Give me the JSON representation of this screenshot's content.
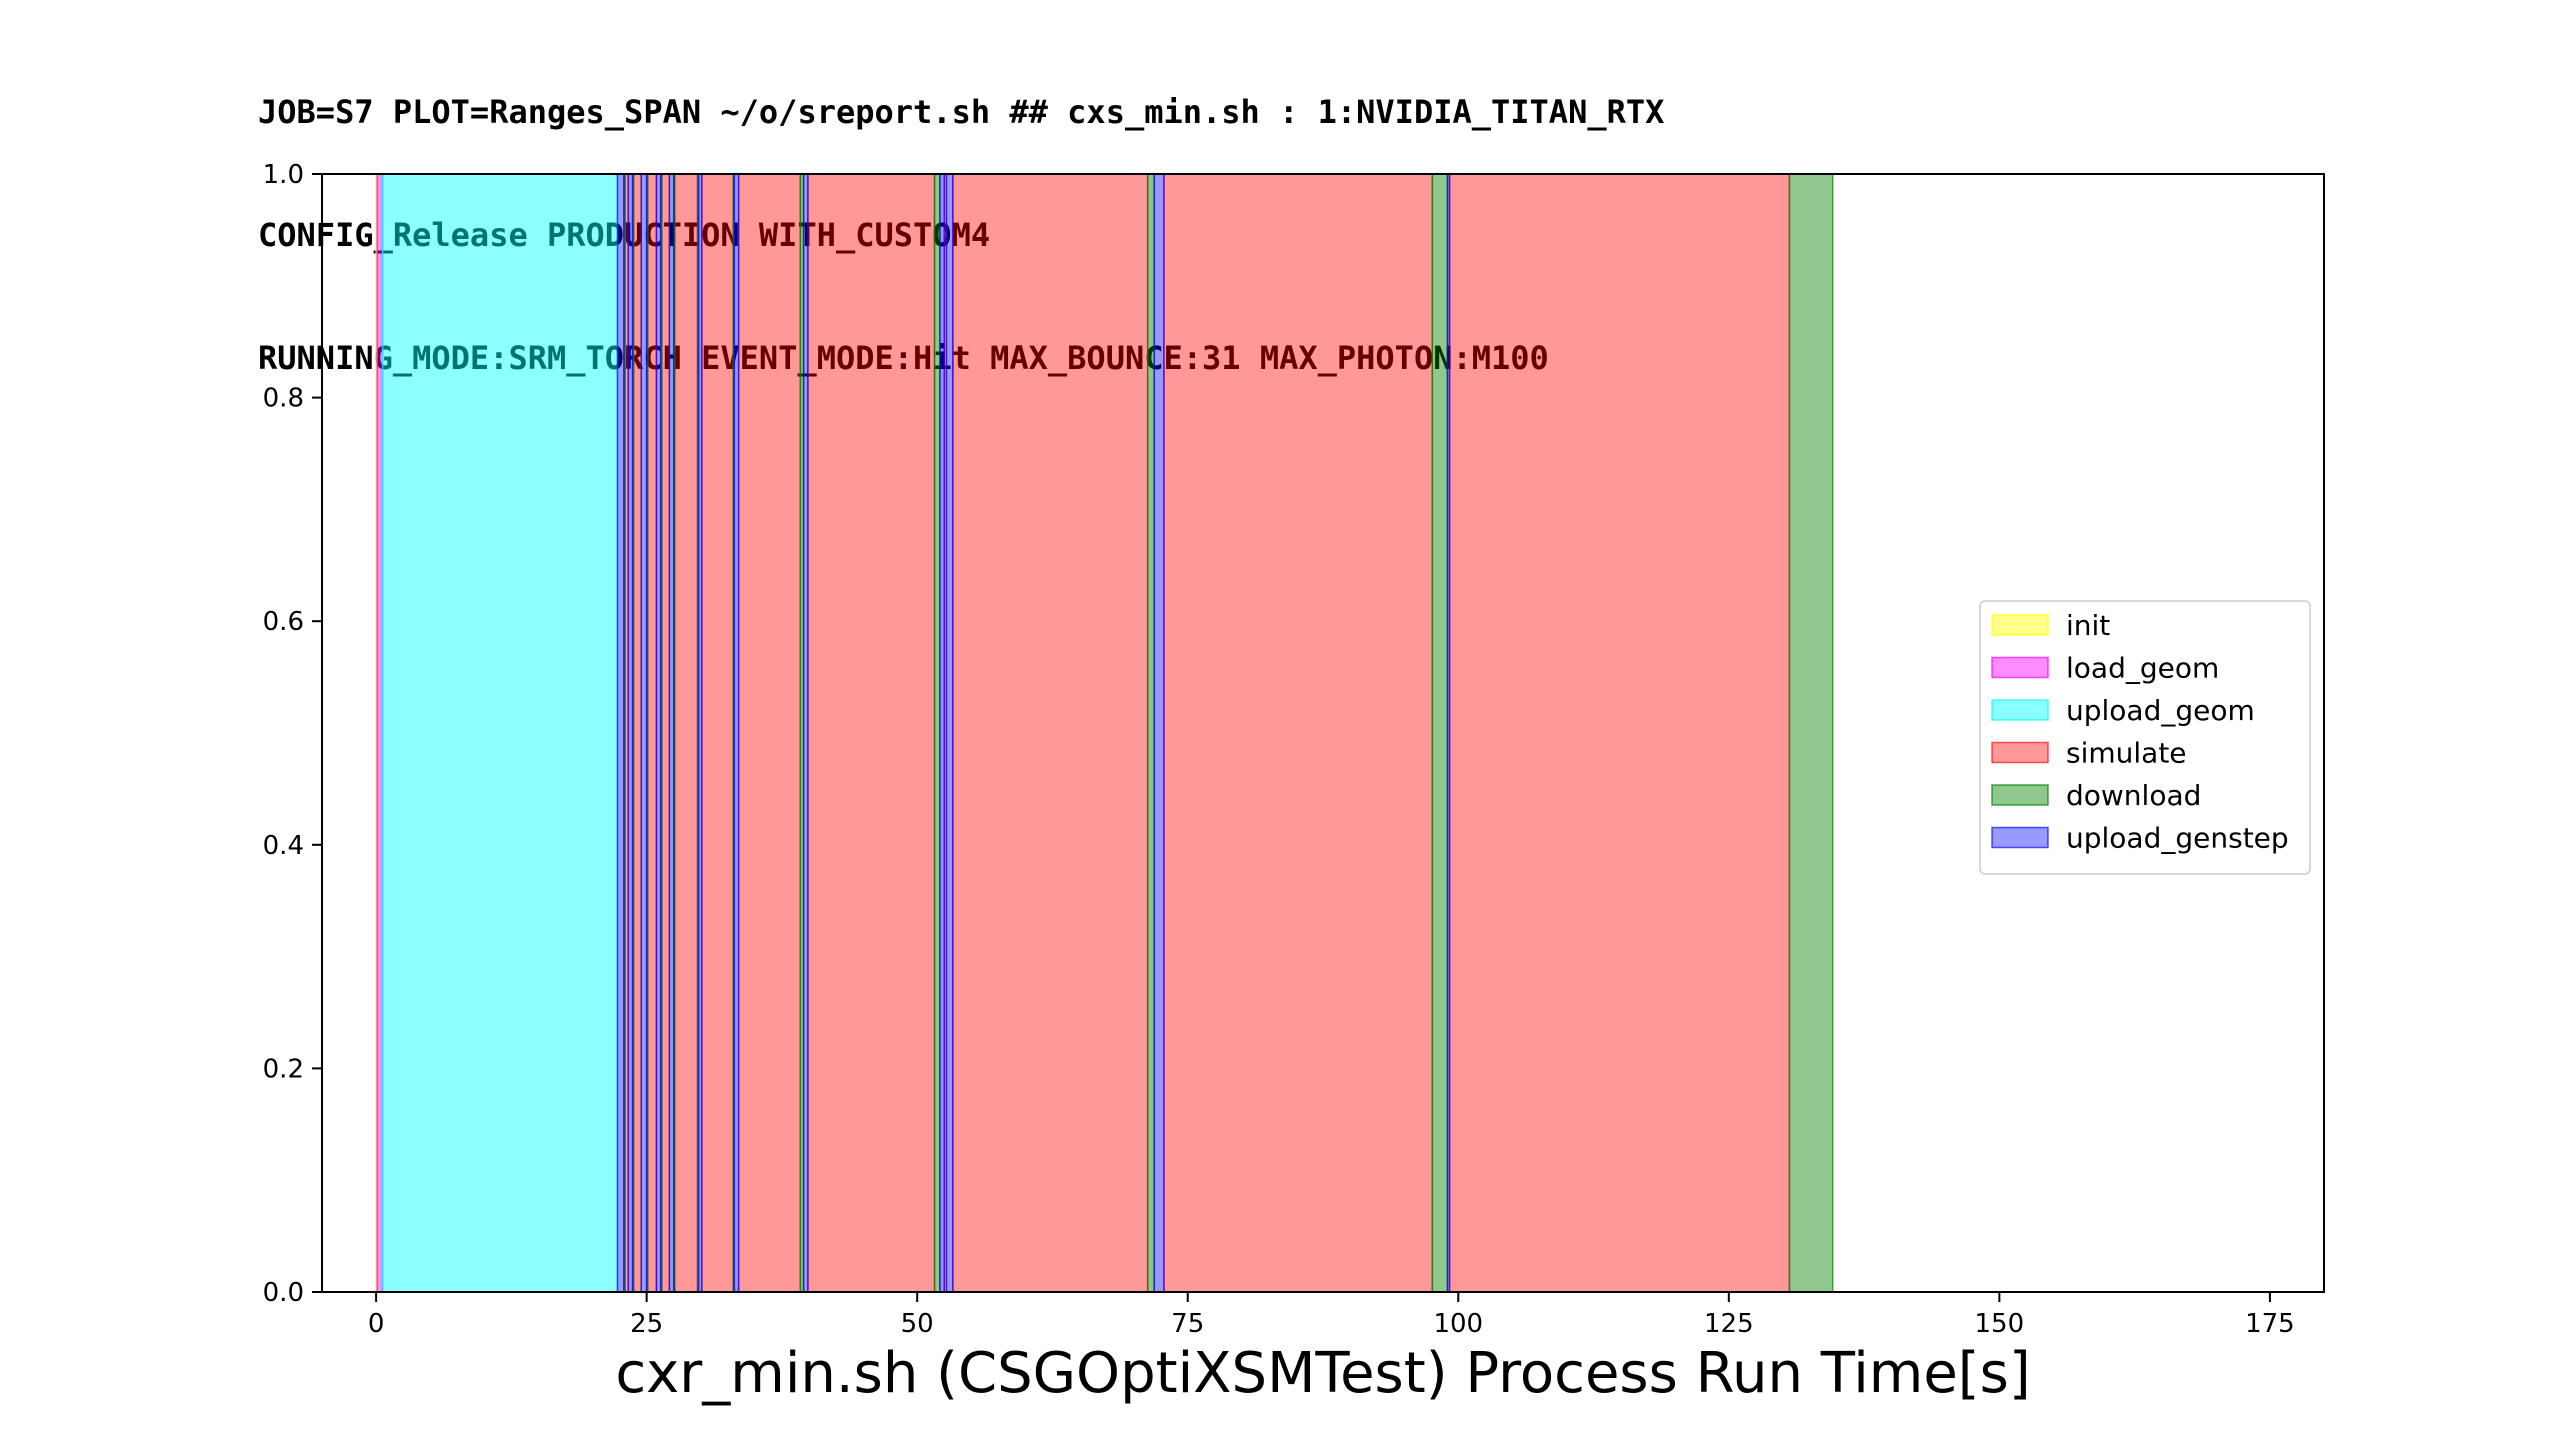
{
  "title_lines": [
    "JOB=S7 PLOT=Ranges_SPAN ~/o/sreport.sh ## cxs_min.sh : 1:NVIDIA_TITAN_RTX",
    "CONFIG_Release PRODUCTION WITH_CUSTOM4",
    "RUNNING_MODE:SRM_TORCH EVENT_MODE:Hit MAX_BOUNCE:31 MAX_PHOTON:M100"
  ],
  "chart_data": {
    "type": "area",
    "xlabel": "cxr_min.sh (CSGOptiXSMTest) Process Run Time[s]",
    "ylabel": "",
    "xlim": [
      -5,
      180
    ],
    "ylim": [
      0,
      1
    ],
    "xticks": [
      {
        "value": 0,
        "label": "0"
      },
      {
        "value": 25,
        "label": "25"
      },
      {
        "value": 50,
        "label": "50"
      },
      {
        "value": 75,
        "label": "75"
      },
      {
        "value": 100,
        "label": "100"
      },
      {
        "value": 125,
        "label": "125"
      },
      {
        "value": 150,
        "label": "150"
      },
      {
        "value": 175,
        "label": "175"
      }
    ],
    "yticks": [
      {
        "value": 0.0,
        "label": "0.0"
      },
      {
        "value": 0.2,
        "label": "0.2"
      },
      {
        "value": 0.4,
        "label": "0.4"
      },
      {
        "value": 0.6,
        "label": "0.6"
      },
      {
        "value": 0.8,
        "label": "0.8"
      },
      {
        "value": 1.0,
        "label": "1.0"
      }
    ],
    "legend_position": "center-right",
    "series": [
      {
        "name": "init",
        "color": "#ffff00",
        "alpha": 0.45,
        "spans": [
          [
            0.0,
            0.1
          ]
        ]
      },
      {
        "name": "load_geom",
        "color": "#ff00ff",
        "alpha": 0.45,
        "spans": [
          [
            0.1,
            0.6
          ]
        ]
      },
      {
        "name": "upload_geom",
        "color": "#00ffff",
        "alpha": 0.45,
        "spans": [
          [
            0.6,
            22.3
          ]
        ]
      },
      {
        "name": "simulate",
        "color": "#ff0000",
        "alpha": 0.4,
        "spans": [
          [
            23.0,
            23.3
          ],
          [
            23.8,
            24.5
          ],
          [
            25.1,
            25.9
          ],
          [
            26.4,
            27.1
          ],
          [
            27.6,
            29.7
          ],
          [
            30.1,
            33.0
          ],
          [
            33.5,
            39.2
          ],
          [
            39.9,
            51.6
          ],
          [
            52.5,
            52.7
          ],
          [
            53.3,
            71.3
          ],
          [
            72.8,
            97.6
          ],
          [
            99.2,
            130.6
          ]
        ]
      },
      {
        "name": "download",
        "color": "#008000",
        "alpha": 0.44,
        "spans": [
          [
            22.9,
            23.0
          ],
          [
            23.7,
            23.8
          ],
          [
            25.0,
            25.1
          ],
          [
            26.3,
            26.4
          ],
          [
            27.5,
            27.6
          ],
          [
            29.7,
            29.8
          ],
          [
            33.0,
            33.1
          ],
          [
            39.2,
            39.5
          ],
          [
            51.6,
            52.1
          ],
          [
            71.3,
            71.9
          ],
          [
            97.6,
            99.0
          ],
          [
            130.6,
            134.6
          ]
        ]
      },
      {
        "name": "upload_genstep",
        "color": "#0000ff",
        "alpha": 0.4,
        "spans": [
          [
            22.3,
            22.9
          ],
          [
            23.3,
            23.7
          ],
          [
            24.5,
            25.0
          ],
          [
            25.9,
            26.3
          ],
          [
            27.1,
            27.5
          ],
          [
            29.8,
            30.1
          ],
          [
            33.1,
            33.5
          ],
          [
            39.5,
            39.9
          ],
          [
            52.1,
            52.5
          ],
          [
            52.7,
            53.3
          ],
          [
            71.9,
            72.8
          ],
          [
            99.0,
            99.2
          ]
        ]
      }
    ]
  }
}
